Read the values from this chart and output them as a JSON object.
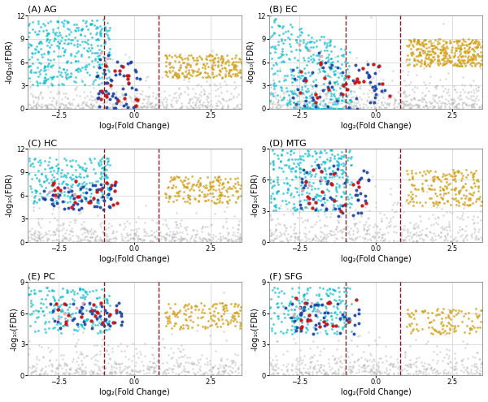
{
  "panels": [
    {
      "label": "(A) AG",
      "fc_thresh": [
        -1.0,
        0.8
      ],
      "ylim": [
        0,
        12
      ],
      "yticks": [
        0,
        3,
        6,
        9,
        12
      ]
    },
    {
      "label": "(B) EC",
      "fc_thresh": [
        -1.0,
        0.8
      ],
      "ylim": [
        0,
        12
      ],
      "yticks": [
        0,
        3,
        6,
        9,
        12
      ]
    },
    {
      "label": "(C) HC",
      "fc_thresh": [
        -1.0,
        0.8
      ],
      "ylim": [
        0,
        12
      ],
      "yticks": [
        0,
        3,
        6,
        9,
        12
      ]
    },
    {
      "label": "(D) MTG",
      "fc_thresh": [
        -1.0,
        0.8
      ],
      "ylim": [
        0,
        9
      ],
      "yticks": [
        0,
        3,
        6,
        9
      ]
    },
    {
      "label": "(E) PC",
      "fc_thresh": [
        -1.0,
        0.8
      ],
      "ylim": [
        0,
        9
      ],
      "yticks": [
        0,
        3,
        6,
        9
      ]
    },
    {
      "label": "(F) SFG",
      "fc_thresh": [
        -1.0,
        0.8
      ],
      "ylim": [
        0,
        9
      ],
      "yticks": [
        0,
        3,
        6,
        9
      ]
    }
  ],
  "xlim": [
    -3.5,
    3.5
  ],
  "xticks": [
    -2.5,
    0.0,
    2.5
  ],
  "xlabel": "log₂(Fold Change)",
  "ylabel": "-log₁₀(FDR)",
  "color_gray": "#b0b0b0",
  "color_cyan": "#00bcd4",
  "color_gold": "#d4a017",
  "color_blue": "#1a3fa0",
  "color_red": "#cc1111",
  "color_pink": "#f4a0b0",
  "dashed_color": "#8b1a1a",
  "background": "#ffffff",
  "grid_color": "#d0d0d0"
}
